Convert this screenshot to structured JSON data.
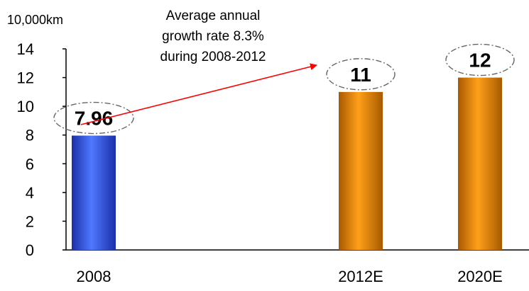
{
  "chart_data": {
    "type": "bar",
    "ylabel": "10,000km",
    "categories": [
      "2008",
      "2012E",
      "2020E"
    ],
    "values": [
      7.96,
      11,
      12
    ],
    "data_labels": [
      "7.96",
      "11",
      "12"
    ],
    "ylim": [
      0,
      14
    ],
    "yticks": [
      0,
      2,
      4,
      6,
      8,
      10,
      12,
      14
    ],
    "grid": false,
    "bar_colors": [
      "#2f55e6",
      "#f08c00",
      "#f08c00"
    ],
    "annotation": {
      "lines": [
        "Average annual",
        "growth rate 8.3%",
        "during 2008-2012"
      ],
      "arrow_color": "#ff0000",
      "from_category": "2008",
      "to_category": "2012E"
    }
  }
}
